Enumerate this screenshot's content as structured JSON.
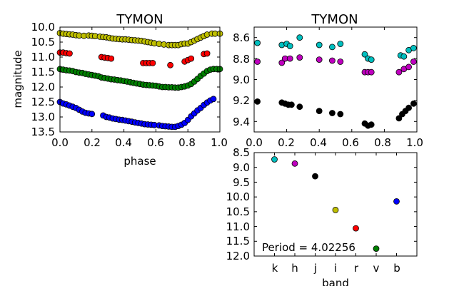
{
  "chart_data": [
    {
      "type": "scatter",
      "title": "TYMON",
      "xlabel": "phase",
      "ylabel": "magnitude",
      "xlim": [
        0.0,
        1.0
      ],
      "ylim": [
        13.5,
        10.0
      ],
      "y_inverted": true,
      "xticks": [
        "0.0",
        "0.2",
        "0.4",
        "0.6",
        "0.8",
        "1.0"
      ],
      "yticks": [
        "10.0",
        "10.5",
        "11.0",
        "11.5",
        "12.0",
        "12.5",
        "13.0",
        "13.5"
      ],
      "series": [
        {
          "color": "#bfbf00",
          "points": [
            [
              0.0,
              10.2
            ],
            [
              0.02,
              10.22
            ],
            [
              0.04,
              10.23
            ],
            [
              0.06,
              10.24
            ],
            [
              0.08,
              10.25
            ],
            [
              0.1,
              10.27
            ],
            [
              0.12,
              10.28
            ],
            [
              0.15,
              10.29
            ],
            [
              0.18,
              10.28
            ],
            [
              0.2,
              10.29
            ],
            [
              0.22,
              10.3
            ],
            [
              0.25,
              10.32
            ],
            [
              0.27,
              10.33
            ],
            [
              0.29,
              10.34
            ],
            [
              0.31,
              10.36
            ],
            [
              0.33,
              10.38
            ],
            [
              0.35,
              10.39
            ],
            [
              0.37,
              10.4
            ],
            [
              0.39,
              10.41
            ],
            [
              0.41,
              10.41
            ],
            [
              0.43,
              10.42
            ],
            [
              0.45,
              10.43
            ],
            [
              0.47,
              10.44
            ],
            [
              0.49,
              10.45
            ],
            [
              0.51,
              10.46
            ],
            [
              0.53,
              10.48
            ],
            [
              0.55,
              10.5
            ],
            [
              0.57,
              10.52
            ],
            [
              0.59,
              10.54
            ],
            [
              0.62,
              10.56
            ],
            [
              0.65,
              10.58
            ],
            [
              0.68,
              10.6
            ],
            [
              0.7,
              10.6
            ],
            [
              0.72,
              10.6
            ],
            [
              0.74,
              10.6
            ],
            [
              0.76,
              10.57
            ],
            [
              0.78,
              10.55
            ],
            [
              0.8,
              10.55
            ],
            [
              0.82,
              10.5
            ],
            [
              0.84,
              10.45
            ],
            [
              0.86,
              10.4
            ],
            [
              0.88,
              10.35
            ],
            [
              0.9,
              10.3
            ],
            [
              0.92,
              10.25
            ],
            [
              0.95,
              10.22
            ],
            [
              0.97,
              10.22
            ],
            [
              1.0,
              10.22
            ]
          ]
        },
        {
          "color": "#ff0000",
          "points": [
            [
              0.0,
              10.85
            ],
            [
              0.02,
              10.85
            ],
            [
              0.04,
              10.87
            ],
            [
              0.06,
              10.88
            ],
            [
              0.26,
              11.0
            ],
            [
              0.28,
              11.02
            ],
            [
              0.3,
              11.03
            ],
            [
              0.32,
              11.05
            ],
            [
              0.52,
              11.2
            ],
            [
              0.54,
              11.2
            ],
            [
              0.56,
              11.2
            ],
            [
              0.58,
              11.2
            ],
            [
              0.69,
              11.27
            ],
            [
              0.78,
              11.15
            ],
            [
              0.8,
              11.1
            ],
            [
              0.82,
              11.05
            ],
            [
              0.9,
              10.9
            ],
            [
              0.92,
              10.88
            ]
          ]
        },
        {
          "color": "#008000",
          "points": [
            [
              0.0,
              11.4
            ],
            [
              0.02,
              11.42
            ],
            [
              0.04,
              11.44
            ],
            [
              0.06,
              11.45
            ],
            [
              0.08,
              11.47
            ],
            [
              0.1,
              11.5
            ],
            [
              0.12,
              11.52
            ],
            [
              0.14,
              11.53
            ],
            [
              0.16,
              11.56
            ],
            [
              0.18,
              11.58
            ],
            [
              0.2,
              11.6
            ],
            [
              0.22,
              11.62
            ],
            [
              0.24,
              11.64
            ],
            [
              0.26,
              11.68
            ],
            [
              0.28,
              11.7
            ],
            [
              0.3,
              11.72
            ],
            [
              0.32,
              11.74
            ],
            [
              0.34,
              11.75
            ],
            [
              0.36,
              11.77
            ],
            [
              0.38,
              11.78
            ],
            [
              0.4,
              11.8
            ],
            [
              0.42,
              11.82
            ],
            [
              0.44,
              11.84
            ],
            [
              0.46,
              11.86
            ],
            [
              0.48,
              11.88
            ],
            [
              0.5,
              11.9
            ],
            [
              0.52,
              11.92
            ],
            [
              0.54,
              11.93
            ],
            [
              0.56,
              11.94
            ],
            [
              0.58,
              11.95
            ],
            [
              0.6,
              11.96
            ],
            [
              0.62,
              11.98
            ],
            [
              0.64,
              12.0
            ],
            [
              0.66,
              12.0
            ],
            [
              0.68,
              12.01
            ],
            [
              0.7,
              12.01
            ],
            [
              0.72,
              12.02
            ],
            [
              0.74,
              12.02
            ],
            [
              0.76,
              12.0
            ],
            [
              0.78,
              11.98
            ],
            [
              0.8,
              11.95
            ],
            [
              0.82,
              11.9
            ],
            [
              0.84,
              11.82
            ],
            [
              0.86,
              11.73
            ],
            [
              0.88,
              11.63
            ],
            [
              0.9,
              11.55
            ],
            [
              0.92,
              11.47
            ],
            [
              0.94,
              11.42
            ],
            [
              0.96,
              11.4
            ],
            [
              0.98,
              11.4
            ],
            [
              1.0,
              11.4
            ]
          ]
        },
        {
          "color": "#0000ff",
          "points": [
            [
              0.0,
              12.5
            ],
            [
              0.02,
              12.55
            ],
            [
              0.04,
              12.58
            ],
            [
              0.06,
              12.62
            ],
            [
              0.08,
              12.66
            ],
            [
              0.1,
              12.7
            ],
            [
              0.12,
              12.76
            ],
            [
              0.14,
              12.82
            ],
            [
              0.16,
              12.86
            ],
            [
              0.18,
              12.88
            ],
            [
              0.2,
              12.9
            ],
            [
              0.27,
              12.95
            ],
            [
              0.29,
              13.0
            ],
            [
              0.31,
              13.02
            ],
            [
              0.33,
              13.05
            ],
            [
              0.35,
              13.07
            ],
            [
              0.37,
              13.09
            ],
            [
              0.39,
              13.1
            ],
            [
              0.41,
              13.12
            ],
            [
              0.43,
              13.14
            ],
            [
              0.45,
              13.16
            ],
            [
              0.47,
              13.18
            ],
            [
              0.49,
              13.2
            ],
            [
              0.51,
              13.22
            ],
            [
              0.53,
              13.24
            ],
            [
              0.55,
              13.25
            ],
            [
              0.57,
              13.26
            ],
            [
              0.59,
              13.27
            ],
            [
              0.62,
              13.28
            ],
            [
              0.64,
              13.3
            ],
            [
              0.66,
              13.31
            ],
            [
              0.68,
              13.32
            ],
            [
              0.7,
              13.33
            ],
            [
              0.72,
              13.33
            ],
            [
              0.74,
              13.3
            ],
            [
              0.76,
              13.26
            ],
            [
              0.78,
              13.2
            ],
            [
              0.8,
              13.1
            ],
            [
              0.82,
              12.98
            ],
            [
              0.84,
              12.88
            ],
            [
              0.86,
              12.78
            ],
            [
              0.88,
              12.7
            ],
            [
              0.9,
              12.6
            ],
            [
              0.92,
              12.52
            ],
            [
              0.94,
              12.45
            ],
            [
              0.96,
              12.4
            ]
          ]
        }
      ]
    },
    {
      "type": "scatter",
      "title": "TYMON",
      "xlim": [
        0.0,
        1.0
      ],
      "ylim": [
        9.5,
        8.5
      ],
      "y_inverted": true,
      "xticks": [
        "0.0",
        "0.2",
        "0.4",
        "0.6",
        "0.8",
        "1.0"
      ],
      "yticks": [
        "8.6",
        "8.8",
        "9.0",
        "9.2",
        "9.4"
      ],
      "series": [
        {
          "color": "#00bfbf",
          "points": [
            [
              0.02,
              8.65
            ],
            [
              0.17,
              8.67
            ],
            [
              0.2,
              8.66
            ],
            [
              0.22,
              8.68
            ],
            [
              0.28,
              8.6
            ],
            [
              0.4,
              8.67
            ],
            [
              0.48,
              8.69
            ],
            [
              0.53,
              8.66
            ],
            [
              0.68,
              8.76
            ],
            [
              0.7,
              8.8
            ],
            [
              0.72,
              8.81
            ],
            [
              0.9,
              8.77
            ],
            [
              0.92,
              8.78
            ],
            [
              0.95,
              8.72
            ],
            [
              0.98,
              8.7
            ]
          ]
        },
        {
          "color": "#bf00bf",
          "points": [
            [
              0.02,
              8.83
            ],
            [
              0.17,
              8.84
            ],
            [
              0.19,
              8.8
            ],
            [
              0.22,
              8.8
            ],
            [
              0.28,
              8.79
            ],
            [
              0.4,
              8.81
            ],
            [
              0.48,
              8.82
            ],
            [
              0.53,
              8.83
            ],
            [
              0.68,
              8.93
            ],
            [
              0.7,
              8.93
            ],
            [
              0.72,
              8.93
            ],
            [
              0.89,
              8.93
            ],
            [
              0.92,
              8.9
            ],
            [
              0.95,
              8.88
            ],
            [
              0.98,
              8.83
            ]
          ]
        },
        {
          "color": "#000000",
          "points": [
            [
              0.02,
              9.21
            ],
            [
              0.17,
              9.22
            ],
            [
              0.19,
              9.23
            ],
            [
              0.21,
              9.24
            ],
            [
              0.23,
              9.24
            ],
            [
              0.28,
              9.26
            ],
            [
              0.4,
              9.3
            ],
            [
              0.48,
              9.32
            ],
            [
              0.53,
              9.33
            ],
            [
              0.68,
              9.42
            ],
            [
              0.7,
              9.44
            ],
            [
              0.72,
              9.43
            ],
            [
              0.89,
              9.37
            ],
            [
              0.91,
              9.33
            ],
            [
              0.93,
              9.3
            ],
            [
              0.95,
              9.27
            ],
            [
              0.98,
              9.23
            ]
          ]
        }
      ]
    },
    {
      "type": "scatter",
      "xlabel": "band",
      "ylim": [
        12.0,
        8.5
      ],
      "y_inverted": true,
      "categories": [
        "k",
        "h",
        "j",
        "i",
        "r",
        "v",
        "b"
      ],
      "yticks": [
        "8.5",
        "9.0",
        "9.5",
        "10.0",
        "10.5",
        "11.0",
        "11.5",
        "12.0"
      ],
      "annotation": "Period = 4.02256",
      "points": [
        {
          "band": "k",
          "value": 8.73,
          "color": "#00bfbf"
        },
        {
          "band": "h",
          "value": 8.87,
          "color": "#bf00bf"
        },
        {
          "band": "j",
          "value": 9.3,
          "color": "#000000"
        },
        {
          "band": "i",
          "value": 10.44,
          "color": "#bfbf00"
        },
        {
          "band": "r",
          "value": 11.06,
          "color": "#ff0000"
        },
        {
          "band": "v",
          "value": 11.75,
          "color": "#008000"
        },
        {
          "band": "b",
          "value": 10.15,
          "color": "#0000ff"
        }
      ]
    }
  ]
}
